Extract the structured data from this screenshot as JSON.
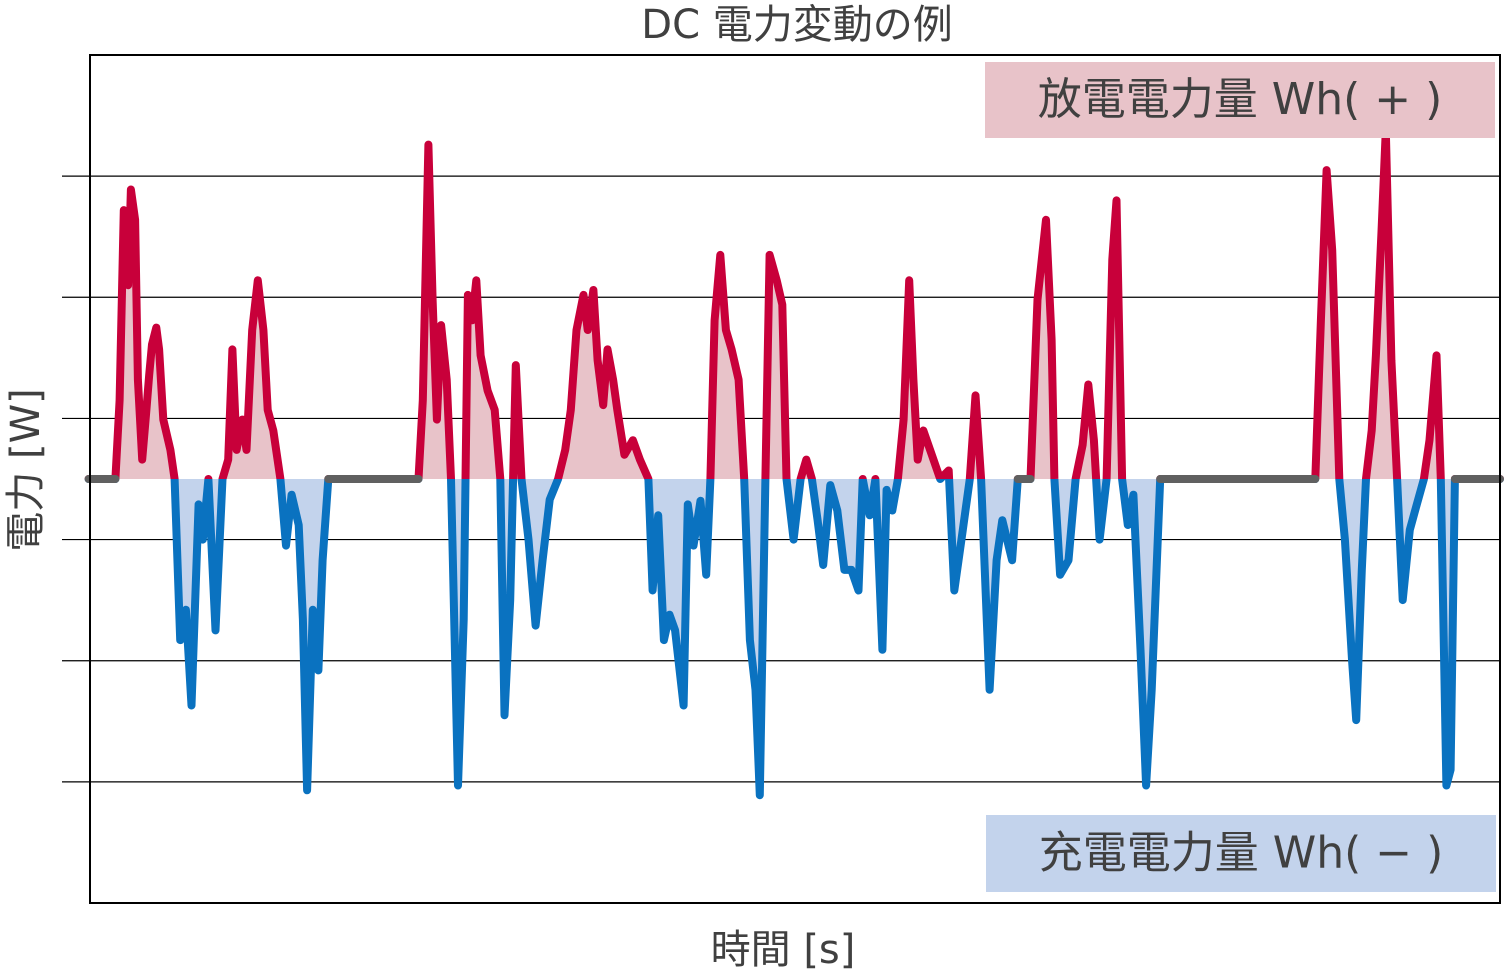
{
  "chart_data": {
    "type": "signed-line",
    "title": "DC 電力変動の例",
    "x_label": "時間 [s]",
    "y_label": "電力 [W]",
    "xlim": [
      0,
      100
    ],
    "ylim": [
      -35,
      35
    ],
    "yticks": [
      -25,
      -15,
      -5,
      5,
      15,
      25
    ],
    "grid": true,
    "color_positive": "#c8003a",
    "color_negative": "#0a72c0",
    "color_zero": "#606060",
    "fill_positive": "#e8c3c9",
    "fill_negative": "#c3d3ec",
    "x": [
      -0.1,
      1.8,
      2.1,
      2.4,
      2.7,
      2.9,
      3.2,
      3.4,
      3.7,
      4.0,
      4.2,
      4.4,
      4.7,
      4.9,
      5.2,
      5.7,
      6.0,
      6.4,
      6.8,
      7.2,
      7.7,
      8.0,
      8.4,
      8.9,
      9.4,
      9.8,
      10.1,
      10.4,
      10.8,
      11.1,
      11.5,
      11.9,
      12.3,
      12.6,
      13.0,
      13.5,
      13.9,
      14.3,
      14.8,
      15.1,
      15.4,
      15.8,
      16.2,
      16.5,
      16.9,
      23.3,
      23.6,
      24.0,
      24.3,
      24.6,
      24.9,
      25.3,
      25.6,
      26.1,
      26.5,
      26.8,
      27.1,
      27.4,
      27.7,
      28.2,
      28.7,
      29.1,
      29.4,
      29.8,
      30.2,
      30.6,
      31.1,
      31.6,
      32.1,
      32.6,
      33.2,
      33.7,
      34.1,
      34.5,
      35.0,
      35.3,
      35.7,
      36.0,
      36.4,
      36.7,
      37.1,
      37.4,
      37.9,
      38.5,
      39.0,
      39.6,
      39.9,
      40.3,
      40.7,
      41.1,
      41.5,
      42.1,
      42.4,
      42.8,
      43.3,
      43.7,
      44.0,
      44.3,
      44.7,
      45.1,
      45.5,
      46.0,
      46.4,
      46.8,
      47.2,
      47.5,
      47.9,
      48.2,
      48.7,
      49.1,
      49.4,
      49.9,
      50.4,
      50.8,
      51.2,
      51.6,
      52.0,
      52.5,
      53.0,
      53.5,
      54.0,
      54.5,
      54.8,
      55.3,
      55.7,
      56.2,
      56.5,
      56.9,
      57.3,
      57.7,
      58.1,
      58.4,
      58.7,
      59.1,
      59.7,
      60.3,
      60.9,
      61.3,
      61.9,
      62.4,
      62.8,
      63.2,
      63.8,
      64.3,
      64.7,
      65.4,
      65.8,
      66.7,
      67.2,
      67.8,
      68.2,
      68.4,
      68.8,
      69.4,
      69.9,
      70.4,
      70.8,
      71.2,
      71.6,
      72.1,
      72.5,
      72.8,
      73.2,
      73.6,
      74.0,
      74.5,
      74.9,
      75.3,
      75.9,
      86.9,
      87.3,
      87.7,
      88.1,
      88.6,
      89.0,
      89.5,
      89.8,
      90.2,
      90.5,
      90.9,
      91.2,
      91.6,
      91.9,
      92.3,
      92.7,
      93.1,
      93.6,
      94.1,
      94.6,
      95.0,
      95.5,
      95.8,
      96.2,
      96.5,
      96.8,
      100
    ],
    "values": [
      0,
      0,
      6.5,
      22.2,
      16.0,
      23.9,
      21.4,
      8.2,
      1.6,
      5.7,
      8.6,
      11.1,
      12.5,
      10.7,
      4.9,
      2.4,
      0,
      -13.3,
      -10.8,
      -18.7,
      -2.1,
      -5.0,
      0,
      -12.5,
      0,
      1.6,
      10.7,
      2.4,
      4.9,
      2.4,
      12.3,
      16.4,
      12.3,
      5.7,
      4.0,
      0,
      -5.5,
      -1.3,
      -3.8,
      -11.6,
      -25.7,
      -10.8,
      -15.8,
      -6.7,
      0,
      0,
      6.5,
      27.6,
      14.8,
      4.9,
      12.7,
      8.2,
      0,
      -25.3,
      -11.6,
      15.2,
      13.1,
      16.4,
      10.2,
      7.3,
      5.7,
      0,
      -19.5,
      -10.0,
      9.4,
      0,
      -5.0,
      -12.1,
      -6.7,
      -1.7,
      0,
      2.4,
      5.7,
      12.3,
      15.2,
      12.3,
      15.6,
      9.8,
      6.1,
      10.7,
      8.2,
      5.7,
      2.0,
      3.2,
      1.6,
      0,
      -9.2,
      -3.0,
      -13.3,
      -11.2,
      -12.5,
      -18.7,
      -2.1,
      -5.5,
      -1.8,
      -7.9,
      0,
      13.1,
      18.5,
      12.3,
      10.7,
      8.2,
      0,
      -13.3,
      -17.4,
      -26.1,
      0,
      18.5,
      16.4,
      14.4,
      0,
      -5.0,
      0,
      1.6,
      0,
      -3.4,
      -7.1,
      -0.5,
      -2.6,
      -7.5,
      -7.5,
      -9.2,
      0,
      -3.0,
      0,
      -14.1,
      -0.9,
      -2.6,
      0,
      4.9,
      16.4,
      8.2,
      1.6,
      4.0,
      2.0,
      0,
      0.7,
      -9.2,
      -4.2,
      0,
      6.9,
      0,
      -17.4,
      -6.7,
      -3.4,
      -6.7,
      0,
      0,
      14.8,
      21.4,
      11.5,
      0,
      -7.9,
      -6.7,
      0,
      2.8,
      7.8,
      3.2,
      -5.0,
      0,
      18.1,
      23.0,
      0,
      -3.8,
      -1.3,
      -14.1,
      -25.3,
      -17.4,
      0,
      0,
      13.1,
      25.5,
      18.9,
      0,
      -5.0,
      -14.9,
      -19.9,
      -7.5,
      0,
      4.0,
      10.2,
      20.6,
      28.8,
      9.8,
      0,
      -10.0,
      -4.2,
      -2.1,
      0,
      3.2,
      10.2,
      0,
      -25.3,
      -24.0,
      0,
      0
    ],
    "annotations": [
      {
        "text": "放電電力量 Wh( + )",
        "color": "#e8c3c9"
      },
      {
        "text": "充電電力量 Wh( − )",
        "color": "#c3d3ec"
      }
    ]
  }
}
